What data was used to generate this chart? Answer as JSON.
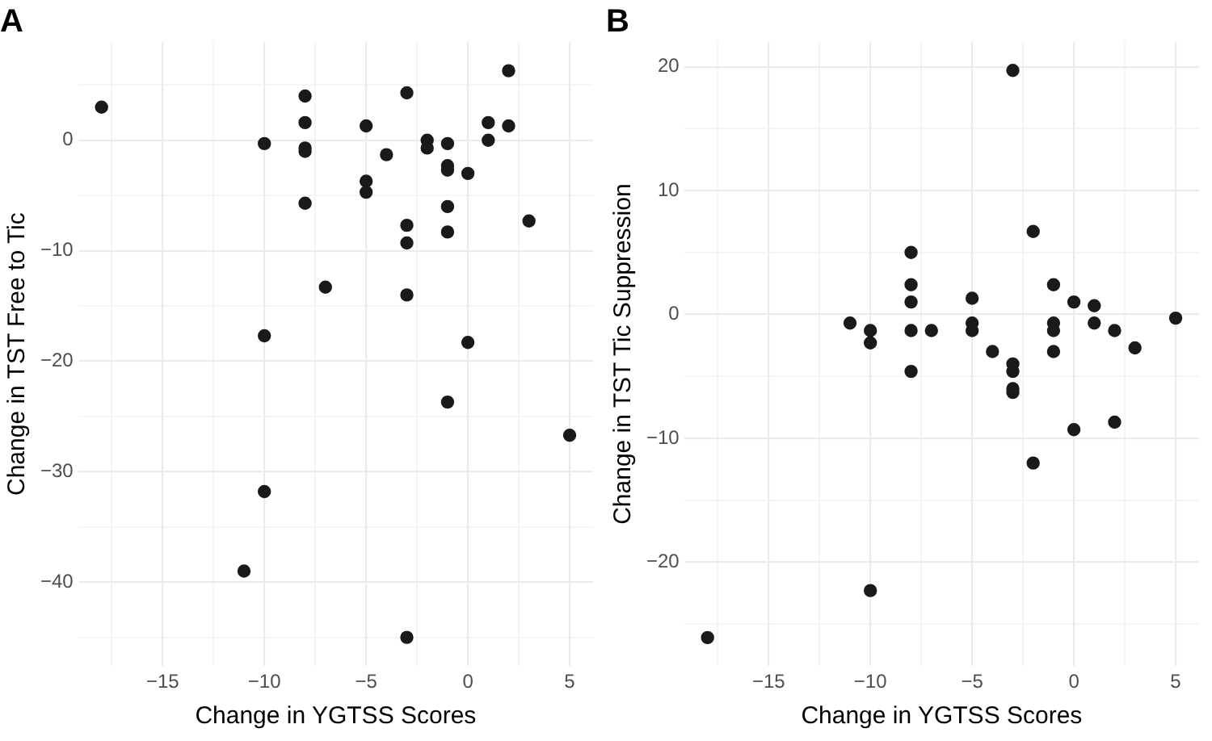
{
  "chart_data": [
    {
      "type": "scatter",
      "title": "A",
      "xlabel": "Change in YGTSS Scores",
      "ylabel": "Change in TST Free to Tic",
      "xlim": [
        -19.15,
        6.15
      ],
      "ylim": [
        -47.6,
        8.9
      ],
      "xticks": [
        {
          "value": -17.5,
          "label": null
        },
        -15,
        {
          "value": -12.5,
          "label": null
        },
        -10,
        {
          "value": -7.5,
          "label": null
        },
        -5,
        {
          "value": -2.5,
          "label": null
        },
        0,
        {
          "value": 2.5,
          "label": null
        },
        5
      ],
      "yticks": [
        {
          "value": -45,
          "label": null
        },
        -40,
        {
          "value": -35,
          "label": null
        },
        -30,
        {
          "value": -25,
          "label": null
        },
        -20,
        {
          "value": -15,
          "label": null
        },
        -10,
        {
          "value": -5,
          "label": null
        },
        0,
        {
          "value": 5,
          "label": null
        }
      ],
      "grid": true,
      "marker": "circle",
      "series": [
        {
          "color": "#1a1a1a",
          "x": [
            -18,
            -10,
            -8,
            -8,
            -8,
            -8,
            -8,
            -5,
            -5,
            -5,
            -4,
            -3,
            -3,
            -3,
            -3,
            -7,
            -10,
            -2,
            -2,
            -1,
            -1,
            -1,
            -1,
            -1,
            0,
            1,
            1,
            2,
            2,
            3,
            0,
            -1,
            5,
            -10,
            -11,
            -3
          ],
          "values": [
            3,
            -0.3,
            4,
            1.6,
            -0.7,
            -1,
            -5.7,
            1.3,
            -3.7,
            -4.7,
            -1.3,
            4.3,
            -7.7,
            -9.3,
            -14,
            -13.3,
            -17.7,
            0,
            -0.7,
            -0.3,
            -2.3,
            -2.7,
            -6,
            -8.3,
            -3,
            1.6,
            0,
            6.3,
            1.3,
            -7.3,
            -18.3,
            -23.7,
            -26.7,
            -31.8,
            -39,
            -45
          ]
        }
      ]
    },
    {
      "type": "scatter",
      "title": "B",
      "xlabel": "Change in YGTSS Scores",
      "ylabel": "Change in TST Tic Suppression",
      "xlim": [
        -19.15,
        6.15
      ],
      "ylim": [
        -28.4,
        22
      ],
      "xticks": [
        {
          "value": -17.5,
          "label": null
        },
        -15,
        {
          "value": -12.5,
          "label": null
        },
        -10,
        {
          "value": -7.5,
          "label": null
        },
        -5,
        {
          "value": -2.5,
          "label": null
        },
        0,
        {
          "value": 2.5,
          "label": null
        },
        5
      ],
      "yticks": [
        {
          "value": -25,
          "label": null
        },
        -20,
        {
          "value": -15,
          "label": null
        },
        -10,
        {
          "value": -5,
          "label": null
        },
        0,
        {
          "value": 5,
          "label": null
        },
        10,
        {
          "value": 15,
          "label": null
        },
        20
      ],
      "grid": true,
      "marker": "circle",
      "series": [
        {
          "color": "#1a1a1a",
          "x": [
            -3,
            -2,
            -8,
            -8,
            -8,
            -8,
            -7,
            -11,
            -10,
            -10,
            -5,
            -5,
            -5,
            -4,
            -3,
            -3,
            -3,
            -3,
            -1,
            -1,
            -1,
            -1,
            0,
            1,
            1,
            2,
            3,
            5,
            0,
            2,
            -2,
            -10,
            -18,
            -8
          ],
          "values": [
            19.7,
            6.7,
            5,
            2.4,
            1,
            -1.3,
            -1.3,
            -0.7,
            -1.3,
            -2.3,
            1.3,
            -0.7,
            -1.3,
            -3,
            -4,
            -4.6,
            -6,
            -6.3,
            2.4,
            -0.7,
            -1.3,
            -3,
            1,
            0.7,
            -0.7,
            -1.3,
            -2.7,
            -0.3,
            -9.3,
            -8.7,
            -12,
            -22.3,
            -26.1,
            -4.6
          ]
        }
      ]
    }
  ]
}
